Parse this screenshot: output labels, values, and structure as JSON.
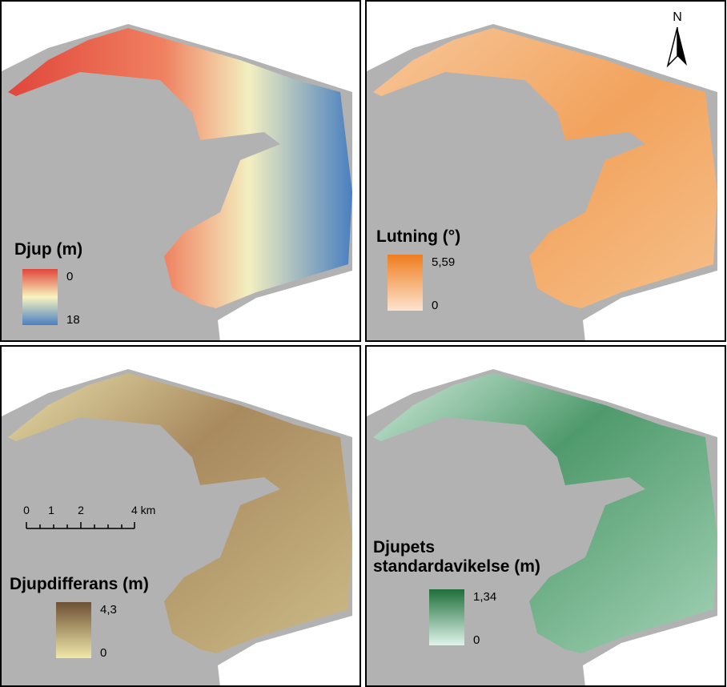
{
  "north_arrow": "N",
  "panels": [
    {
      "title": [
        "Djup (m)"
      ],
      "legend_max": "0",
      "legend_min": "18"
    },
    {
      "title": [
        "Lutning (°)"
      ],
      "legend_max": "5,59",
      "legend_min": "0"
    },
    {
      "title": [
        "Djupdifferans (m)"
      ],
      "legend_max": "4,3",
      "legend_min": "0"
    },
    {
      "title": [
        "Djupets",
        "standardavikelse (m)"
      ],
      "legend_max": "1,34",
      "legend_min": "0"
    }
  ],
  "scale_bar": {
    "labels": [
      "0",
      "1",
      "2",
      "4 km"
    ]
  }
}
